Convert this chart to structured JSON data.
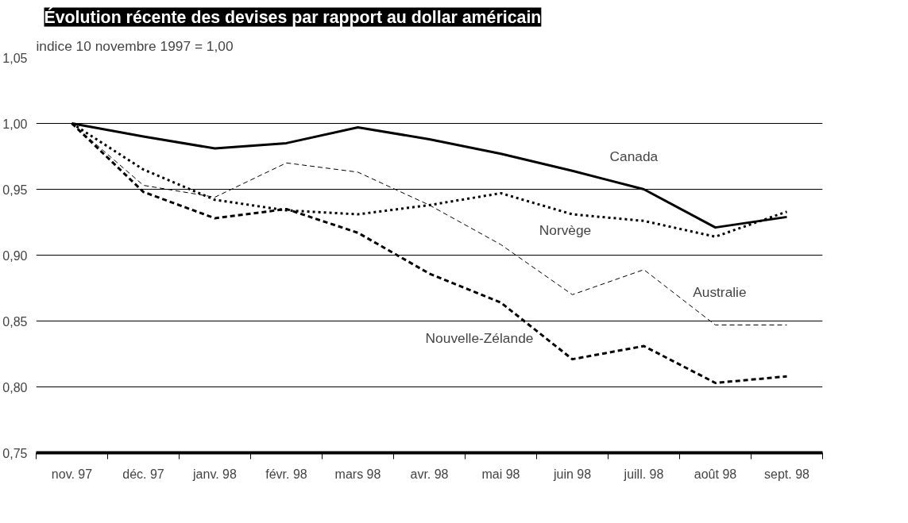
{
  "chart_data": {
    "type": "line",
    "title": "Évolution récente des devises par rapport au dollar américain",
    "ylabel": "indice 10 novembre 1997 = 1,00",
    "categories": [
      "nov. 97",
      "déc. 97",
      "janv. 98",
      "févr. 98",
      "mars 98",
      "avr. 98",
      "mai 98",
      "juin 98",
      "juill. 98",
      "août 98",
      "sept. 98"
    ],
    "series": [
      {
        "name": "Canada",
        "color": "#000000",
        "line_style": "solid",
        "values": [
          1.0,
          0.99,
          0.981,
          0.985,
          0.997,
          0.988,
          0.977,
          0.964,
          0.95,
          0.921,
          0.929
        ]
      },
      {
        "name": "Norvège",
        "color": "#000000",
        "line_style": "dotted",
        "values": [
          1.0,
          0.965,
          0.942,
          0.934,
          0.931,
          0.938,
          0.947,
          0.931,
          0.926,
          0.914,
          0.933
        ]
      },
      {
        "name": "Australie",
        "color": "#000000",
        "line_style": "dashed",
        "values": [
          1.0,
          0.953,
          0.944,
          0.97,
          0.963,
          0.938,
          0.908,
          0.87,
          0.889,
          0.847,
          0.847
        ]
      },
      {
        "name": "Nouvelle-Zélande",
        "color": "#000000",
        "line_style": "dashed",
        "values": [
          1.0,
          0.948,
          0.928,
          0.935,
          0.917,
          0.886,
          0.864,
          0.821,
          0.831,
          0.803,
          0.808
        ]
      }
    ],
    "ylim": [
      0.75,
      1.05
    ],
    "yticks": [
      {
        "value": 0.75,
        "label": "0,75"
      },
      {
        "value": 0.8,
        "label": "0,80"
      },
      {
        "value": 0.85,
        "label": "0,85"
      },
      {
        "value": 0.9,
        "label": "0,90"
      },
      {
        "value": 0.95,
        "label": "0,95"
      },
      {
        "value": 1.0,
        "label": "1,00"
      },
      {
        "value": 1.05,
        "label": "1,05"
      }
    ],
    "grid": "y",
    "marker": "none"
  }
}
